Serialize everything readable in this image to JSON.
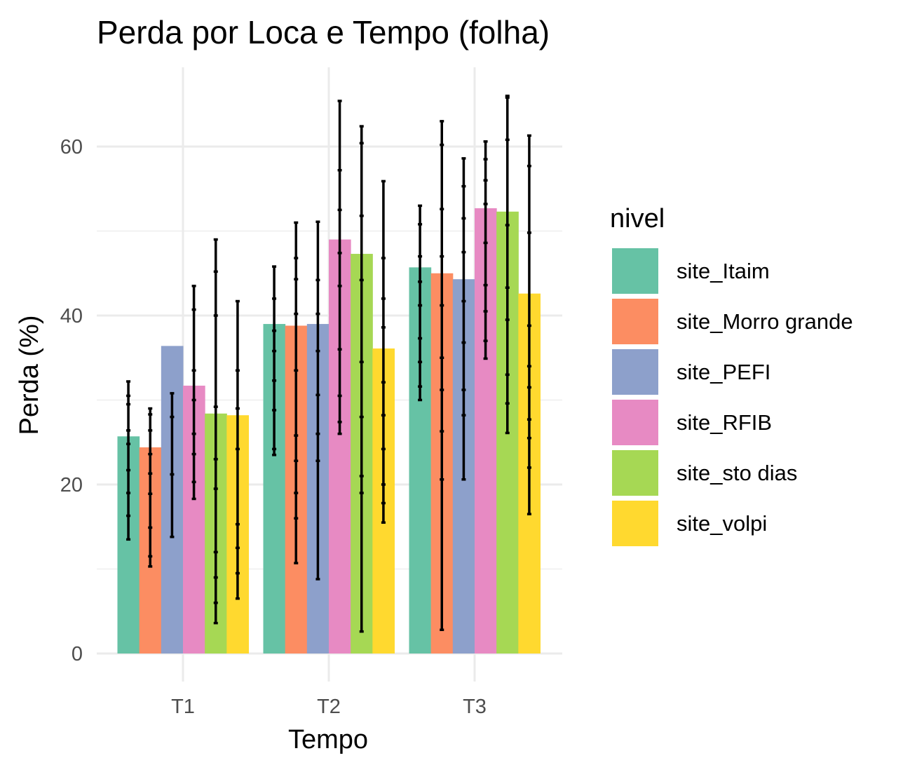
{
  "chart_data": {
    "type": "bar",
    "title": "Perda por Loca e Tempo (folha)",
    "xlabel": "Tempo",
    "ylabel": "Perda (%)",
    "categories": [
      "T1",
      "T2",
      "T3"
    ],
    "ylim": [
      0,
      68
    ],
    "yticks": [
      0,
      20,
      40,
      60
    ],
    "legend": {
      "title": "nivel",
      "position": "right"
    },
    "grid": true,
    "series": [
      {
        "name": "site_Itaim",
        "color": "#66c2a5",
        "values": [
          25.7,
          39.0,
          45.7
        ],
        "error_ranges": [
          [
            13.5,
            32.2
          ],
          [
            23.5,
            45.8
          ],
          [
            30.0,
            53.0
          ]
        ],
        "points": [
          [
            16.3,
            19.0,
            21.7,
            24.8,
            26.4,
            29.5,
            30.5
          ],
          [
            24.2,
            28.8,
            32.3,
            35.8,
            38.2,
            42.0
          ],
          [
            31.6,
            34.5,
            37.3,
            41.2,
            44.0,
            47.0,
            50.8
          ]
        ]
      },
      {
        "name": "site_Morro grande",
        "color": "#fc8d62",
        "values": [
          24.4,
          38.8,
          45.0
        ],
        "error_ranges": [
          [
            10.3,
            29.0
          ],
          [
            10.7,
            51.0
          ],
          [
            2.8,
            63.0
          ]
        ],
        "points": [
          [
            11.5,
            14.9,
            18.9,
            21.3,
            23.6,
            26.4,
            28.3
          ],
          [
            16.0,
            19.0,
            22.8,
            25.8,
            33.5,
            40.2,
            44.3,
            46.8
          ],
          [
            20.6,
            26.3,
            31.2,
            35.0,
            41.2,
            47.0,
            52.6,
            60.2
          ]
        ]
      },
      {
        "name": "site_PEFI",
        "color": "#8da0cb",
        "values": [
          36.4,
          39.0,
          44.3
        ],
        "error_ranges": [
          [
            13.8,
            30.8
          ],
          [
            8.8,
            51.1
          ],
          [
            20.6,
            58.6
          ]
        ],
        "points": [
          [
            21.2,
            28.0
          ],
          [
            22.8,
            26.0,
            30.6,
            35.8,
            40.2,
            44.2
          ],
          [
            28.2,
            31.2,
            36.8,
            41.7,
            47.5,
            51.5,
            55.3
          ]
        ]
      },
      {
        "name": "site_RFIB",
        "color": "#e78ac3",
        "values": [
          31.7,
          49.0,
          52.7
        ],
        "error_ranges": [
          [
            18.3,
            43.5
          ],
          [
            26.0,
            65.4
          ],
          [
            34.9,
            60.6
          ]
        ],
        "points": [
          [
            20.3,
            23.6,
            26.0,
            30.0,
            33.5,
            40.7
          ],
          [
            27.4,
            30.5,
            36.0,
            43.5,
            47.4,
            52.5,
            57.2
          ],
          [
            37.0,
            40.5,
            43.6,
            48.6,
            53.2,
            56.0,
            58.5
          ]
        ]
      },
      {
        "name": "site_sto dias",
        "color": "#a6d854",
        "values": [
          28.4,
          47.3,
          52.3
        ],
        "error_ranges": [
          [
            3.6,
            49.0
          ],
          [
            2.6,
            62.4
          ],
          [
            26.1,
            66.0
          ]
        ],
        "points": [
          [
            6.0,
            9.0,
            12.0,
            19.5,
            23.0,
            29.2,
            40.0,
            45.2
          ],
          [
            19.0,
            21.0,
            28.0,
            34.5,
            44.2,
            51.8,
            60.4
          ],
          [
            29.6,
            33.0,
            39.5,
            43.3,
            50.7,
            60.8,
            65.8
          ]
        ]
      },
      {
        "name": "site_volpi",
        "color": "#ffd92f",
        "values": [
          28.2,
          36.1,
          42.6
        ],
        "error_ranges": [
          [
            6.5,
            41.7
          ],
          [
            15.5,
            55.9
          ],
          [
            16.5,
            61.3
          ]
        ],
        "points": [
          [
            9.5,
            12.5,
            15.3,
            24.2,
            29.0,
            33.5
          ],
          [
            17.8,
            20.0,
            24.2,
            28.2,
            32.1,
            38.6,
            42.0,
            46.8
          ],
          [
            22.0,
            25.5,
            27.7,
            31.5,
            34.0,
            38.8,
            49.8,
            57.7
          ]
        ]
      }
    ]
  }
}
